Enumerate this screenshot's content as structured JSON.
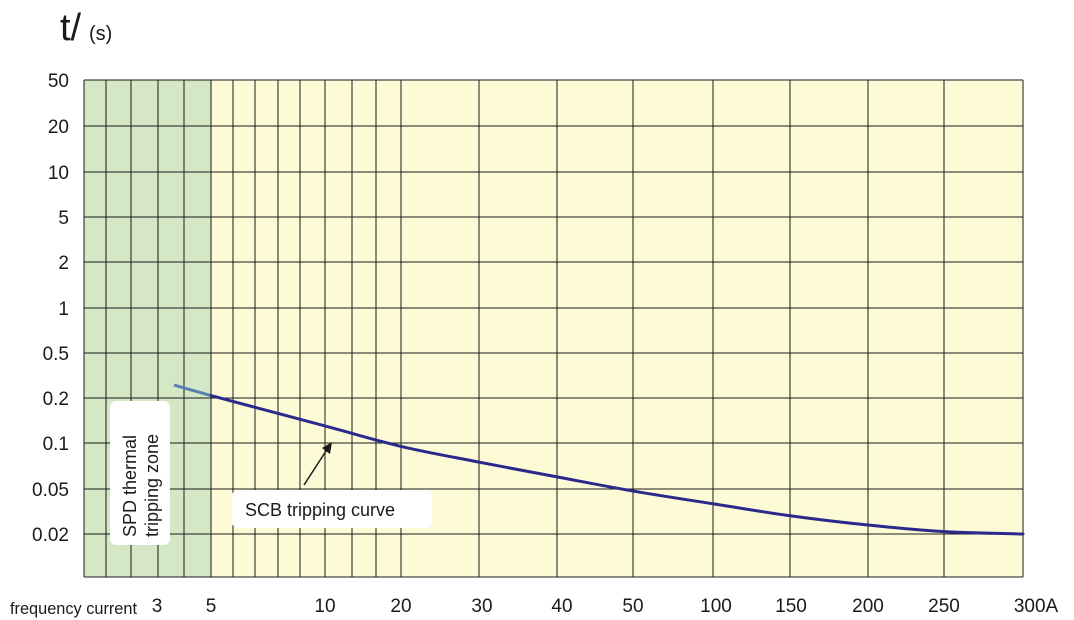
{
  "chart_data": {
    "type": "line",
    "title": "",
    "ylabel_main": "t/",
    "ylabel_unit": "(s)",
    "y_scale": "categorical-log",
    "y_ticks": [
      "50",
      "20",
      "10",
      "5",
      "2",
      "1",
      "0.5",
      "0.2",
      "0.1",
      "0.05",
      "0.02"
    ],
    "x_prefix": "frequency current",
    "x_ticks": [
      "3",
      "5",
      "10",
      "20",
      "30",
      "40",
      "50",
      "100",
      "150",
      "200",
      "250",
      "300A"
    ],
    "grid": true,
    "zones": [
      {
        "name": "SPD thermal tripping zone",
        "x_from": "start",
        "x_to": "5",
        "color": "#d5e8c5"
      }
    ],
    "series": [
      {
        "name": "SCB tripping curve",
        "color": "#2a2a8c",
        "points": [
          {
            "x": "4",
            "y": 0.26
          },
          {
            "x": "5",
            "y": 0.21
          },
          {
            "x": "10",
            "y": 0.13
          },
          {
            "x": "20",
            "y": 0.095
          },
          {
            "x": "30",
            "y": 0.075
          },
          {
            "x": "40",
            "y": 0.06
          },
          {
            "x": "50",
            "y": 0.048
          },
          {
            "x": "100",
            "y": 0.037
          },
          {
            "x": "150",
            "y": 0.029
          },
          {
            "x": "200",
            "y": 0.024
          },
          {
            "x": "250",
            "y": 0.021
          },
          {
            "x": "300A",
            "y": 0.02
          }
        ]
      }
    ],
    "annotations": {
      "zone_label_line1": "SPD thermal",
      "zone_label_line2": "tripping zone",
      "curve_label": "SCB tripping curve"
    },
    "colors": {
      "plot_background": "#fdfbd5",
      "zone_fill": "#d5e8c5",
      "grid": "#1a1a1a",
      "curve": "#2a2a8c",
      "curve_start": "#5a7fb0"
    }
  }
}
